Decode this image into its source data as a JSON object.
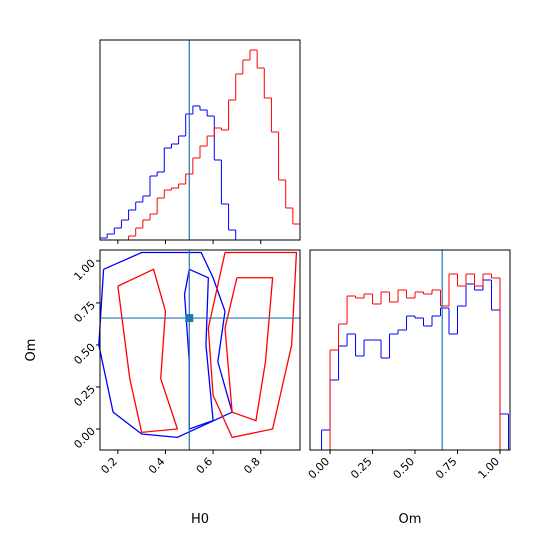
{
  "chart_data": [
    {
      "type": "histogram",
      "xlim": [
        0.125,
        0.965
      ],
      "ylim": [
        0,
        1
      ],
      "xticks": [
        0.2,
        0.4,
        0.6,
        0.8
      ],
      "bins": [
        0.125,
        0.155,
        0.185,
        0.215,
        0.245,
        0.275,
        0.305,
        0.335,
        0.365,
        0.395,
        0.425,
        0.455,
        0.485,
        0.515,
        0.545,
        0.575,
        0.605,
        0.635,
        0.665,
        0.695,
        0.725,
        0.755,
        0.785,
        0.815,
        0.845,
        0.875,
        0.905,
        0.935,
        0.965
      ],
      "series": [
        {
          "color": "blue",
          "values": [
            0.01,
            0.03,
            0.06,
            0.1,
            0.15,
            0.19,
            0.22,
            0.32,
            0.34,
            0.46,
            0.48,
            0.52,
            0.63,
            0.67,
            0.65,
            0.62,
            0.4,
            0.18,
            0.05,
            0,
            0,
            0,
            0,
            0,
            0,
            0,
            0,
            0
          ]
        },
        {
          "color": "red",
          "values": [
            0,
            0,
            0,
            0,
            0.02,
            0.06,
            0.1,
            0.13,
            0.21,
            0.25,
            0.26,
            0.28,
            0.33,
            0.41,
            0.47,
            0.52,
            0.56,
            0.55,
            0.7,
            0.83,
            0.9,
            0.95,
            0.86,
            0.71,
            0.54,
            0.3,
            0.16,
            0.08
          ]
        }
      ],
      "truth": 0.5,
      "truth_color": "#1f77b4"
    },
    {
      "type": "contour",
      "xlabel": "H0",
      "ylabel": "Om",
      "xlim": [
        0.125,
        0.965
      ],
      "ylim": [
        -0.125,
        1.065
      ],
      "xticks": [
        0.2,
        0.4,
        0.6,
        0.8
      ],
      "yticks": [
        {
          "value": 0,
          "label": "0.00"
        },
        {
          "value": 0.25,
          "label": "0.25"
        },
        {
          "value": 0.5,
          "label": "0.50"
        },
        {
          "value": 0.75,
          "label": "0.75"
        },
        {
          "value": 1,
          "label": "1.00"
        }
      ],
      "series": [
        {
          "color": "blue",
          "x": [
            0.14,
            0.3,
            0.55,
            0.6,
            0.65,
            0.62,
            0.68,
            0.45,
            0.3,
            0.18,
            0.12,
            0.14
          ],
          "y": [
            0.95,
            1.05,
            1.05,
            0.9,
            0.7,
            0.4,
            0.1,
            -0.05,
            -0.03,
            0.1,
            0.5,
            0.95
          ]
        },
        {
          "color": "blue",
          "x": [
            0.5,
            0.58,
            0.57,
            0.6,
            0.5,
            0.5,
            0.48,
            0.5
          ],
          "y": [
            0.95,
            0.9,
            0.5,
            0.05,
            0.0,
            0.4,
            0.8,
            0.95
          ]
        },
        {
          "color": "red",
          "x": [
            0.65,
            0.95,
            0.93,
            0.85,
            0.68,
            0.6,
            0.58,
            0.65
          ],
          "y": [
            1.05,
            1.05,
            0.5,
            0.0,
            -0.05,
            0.2,
            0.6,
            1.05
          ]
        },
        {
          "color": "red",
          "x": [
            0.7,
            0.85,
            0.82,
            0.78,
            0.68,
            0.65,
            0.7
          ],
          "y": [
            0.9,
            0.9,
            0.4,
            0.05,
            0.1,
            0.6,
            0.9
          ]
        },
        {
          "color": "red",
          "x": [
            0.2,
            0.35,
            0.4,
            0.38,
            0.45,
            0.3,
            0.25,
            0.2
          ],
          "y": [
            0.85,
            0.95,
            0.7,
            0.3,
            0.0,
            -0.02,
            0.3,
            0.85
          ]
        }
      ],
      "truth_x": 0.5,
      "truth_y": 0.66,
      "truth_color": "#1f77b4"
    },
    {
      "type": "histogram",
      "xlabel": "Om",
      "xlim": [
        -0.118,
        1.059
      ],
      "ylim": [
        0,
        1
      ],
      "xticks": [
        {
          "value": 0,
          "label": "0.00"
        },
        {
          "value": 0.25,
          "label": "0.25"
        },
        {
          "value": 0.5,
          "label": "0.50"
        },
        {
          "value": 0.75,
          "label": "0.75"
        },
        {
          "value": 1,
          "label": "1.00"
        }
      ],
      "bins": [
        -0.05,
        0,
        0.05,
        0.1,
        0.15,
        0.2,
        0.25,
        0.3,
        0.35,
        0.4,
        0.45,
        0.5,
        0.55,
        0.6,
        0.65,
        0.7,
        0.75,
        0.8,
        0.85,
        0.9,
        0.95,
        1.0,
        1.05
      ],
      "series": [
        {
          "color": "blue",
          "values": [
            0.1,
            0.35,
            0.52,
            0.58,
            0.47,
            0.55,
            0.55,
            0.46,
            0.58,
            0.6,
            0.67,
            0.66,
            0.62,
            0.67,
            0.71,
            0.58,
            0.72,
            0.83,
            0.8,
            0.85,
            0.7,
            0.18
          ]
        },
        {
          "color": "red",
          "values": [
            0,
            0.5,
            0.63,
            0.77,
            0.76,
            0.78,
            0.73,
            0.79,
            0.74,
            0.8,
            0.76,
            0.79,
            0.78,
            0.8,
            0.72,
            0.88,
            0.82,
            0.88,
            0.82,
            0.88,
            0.86,
            0
          ]
        }
      ],
      "truth": 0.66,
      "truth_color": "#1f77b4"
    }
  ]
}
